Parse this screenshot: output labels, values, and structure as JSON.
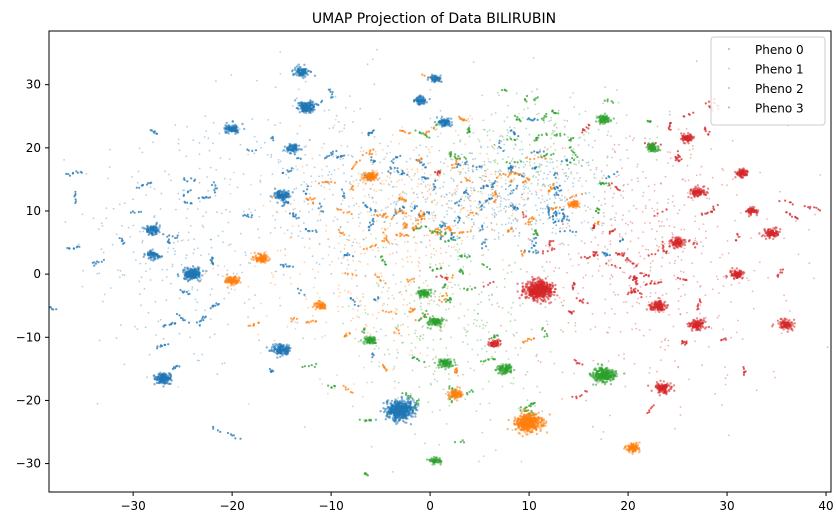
{
  "chart_data": {
    "type": "scatter",
    "title": "UMAP Projection of Data BILIRUBIN",
    "xlabel": "",
    "ylabel": "",
    "xlim": [
      -38.5,
      40.5
    ],
    "ylim": [
      -34.5,
      38.5
    ],
    "xticks": [
      -30,
      -20,
      -10,
      0,
      10,
      20,
      30,
      40
    ],
    "yticks": [
      -30,
      -20,
      -10,
      0,
      10,
      20,
      30
    ],
    "xtick_labels": [
      "−30",
      "−20",
      "−10",
      "0",
      "10",
      "20",
      "30",
      "40"
    ],
    "ytick_labels": [
      "−30",
      "−20",
      "−10",
      "0",
      "10",
      "20",
      "30"
    ],
    "grid": false,
    "legend_position": "top-right",
    "series": [
      {
        "name": "Pheno 0",
        "color": "#1f77b4",
        "clusters": [
          {
            "x": -3,
            "y": -21.5,
            "size": 1.4
          },
          {
            "x": -24,
            "y": 0,
            "size": 0.8
          },
          {
            "x": -15,
            "y": -12,
            "size": 0.7
          },
          {
            "x": -27,
            "y": -16.5,
            "size": 0.7
          },
          {
            "x": -12.5,
            "y": 26.5,
            "size": 0.7
          },
          {
            "x": -15,
            "y": 12.5,
            "size": 0.6
          },
          {
            "x": -13,
            "y": 32,
            "size": 0.5
          },
          {
            "x": -20,
            "y": 23,
            "size": 0.5
          },
          {
            "x": -28,
            "y": 7,
            "size": 0.5
          },
          {
            "x": -28,
            "y": 3,
            "size": 0.4
          },
          {
            "x": -14,
            "y": 20,
            "size": 0.4
          },
          {
            "x": -1,
            "y": 27.5,
            "size": 0.4
          },
          {
            "x": 1.5,
            "y": 24,
            "size": 0.4
          },
          {
            "x": 0.5,
            "y": 31,
            "size": 0.3
          }
        ]
      },
      {
        "name": "Pheno 1",
        "color": "#ff7f0e",
        "clusters": [
          {
            "x": 10,
            "y": -23.5,
            "size": 1.3
          },
          {
            "x": -17,
            "y": 2.5,
            "size": 0.5
          },
          {
            "x": -20,
            "y": -1,
            "size": 0.5
          },
          {
            "x": -6,
            "y": 15.5,
            "size": 0.5
          },
          {
            "x": 2.5,
            "y": -19,
            "size": 0.5
          },
          {
            "x": 20.5,
            "y": -27.5,
            "size": 0.5
          },
          {
            "x": -11,
            "y": -5,
            "size": 0.3
          },
          {
            "x": 14.5,
            "y": 11,
            "size": 0.3
          }
        ]
      },
      {
        "name": "Pheno 2",
        "color": "#2ca02c",
        "clusters": [
          {
            "x": 17.5,
            "y": -16,
            "size": 1.0
          },
          {
            "x": 0.5,
            "y": -7.5,
            "size": 0.5
          },
          {
            "x": 1.5,
            "y": -14,
            "size": 0.5
          },
          {
            "x": 7.5,
            "y": -15,
            "size": 0.5
          },
          {
            "x": -6,
            "y": -10.5,
            "size": 0.4
          },
          {
            "x": -0.5,
            "y": -3,
            "size": 0.4
          },
          {
            "x": 17.5,
            "y": 24.5,
            "size": 0.4
          },
          {
            "x": 22.5,
            "y": 20,
            "size": 0.4
          },
          {
            "x": 0.5,
            "y": -29.5,
            "size": 0.3
          }
        ]
      },
      {
        "name": "Pheno 3",
        "color": "#d62728",
        "clusters": [
          {
            "x": 11,
            "y": -2.5,
            "size": 1.4
          },
          {
            "x": 23,
            "y": -5,
            "size": 0.6
          },
          {
            "x": 27,
            "y": -8,
            "size": 0.6
          },
          {
            "x": 36,
            "y": -8,
            "size": 0.5
          },
          {
            "x": 23.5,
            "y": -18,
            "size": 0.6
          },
          {
            "x": 25,
            "y": 5,
            "size": 0.5
          },
          {
            "x": 31,
            "y": 0,
            "size": 0.5
          },
          {
            "x": 34.5,
            "y": 6.5,
            "size": 0.5
          },
          {
            "x": 27,
            "y": 13,
            "size": 0.5
          },
          {
            "x": 31.5,
            "y": 16,
            "size": 0.4
          },
          {
            "x": 26,
            "y": 21.5,
            "size": 0.4
          },
          {
            "x": 6.5,
            "y": -11,
            "size": 0.3
          },
          {
            "x": 32.5,
            "y": 10,
            "size": 0.3
          }
        ]
      }
    ],
    "diffuse_regions": [
      {
        "series": 0,
        "cx": -25,
        "cy": 5,
        "rx": 10,
        "ry": 20,
        "n": 260
      },
      {
        "series": 0,
        "cx": 8,
        "cy": 12,
        "rx": 10,
        "ry": 7,
        "n": 420
      },
      {
        "series": 0,
        "cx": -10,
        "cy": 14,
        "rx": 9,
        "ry": 16,
        "n": 220
      },
      {
        "series": 1,
        "cx": -6,
        "cy": 3,
        "rx": 11,
        "ry": 18,
        "n": 380
      },
      {
        "series": 1,
        "cx": 3,
        "cy": 14,
        "rx": 10,
        "ry": 8,
        "n": 200
      },
      {
        "series": 2,
        "cx": 2,
        "cy": -8,
        "rx": 9,
        "ry": 16,
        "n": 300
      },
      {
        "series": 2,
        "cx": 10,
        "cy": 20,
        "rx": 9,
        "ry": 9,
        "n": 220
      },
      {
        "series": 3,
        "cx": 22,
        "cy": 3,
        "rx": 13,
        "ry": 20,
        "n": 480
      }
    ]
  }
}
